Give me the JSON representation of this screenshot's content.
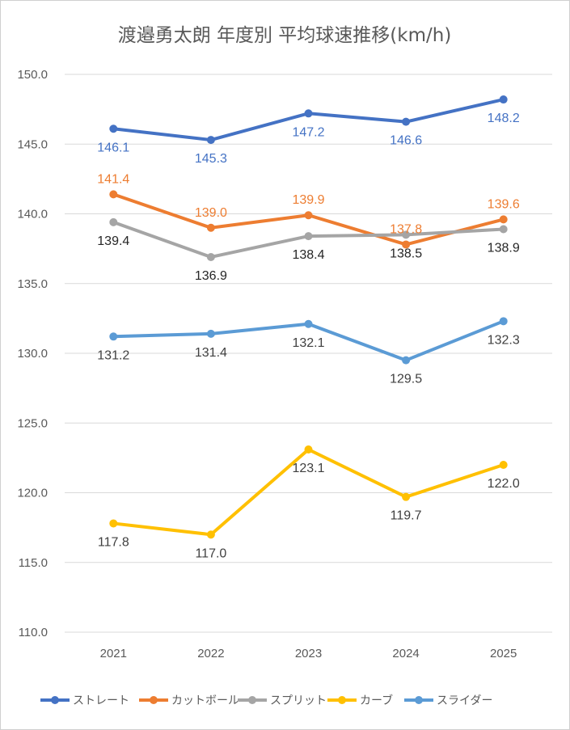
{
  "chart_data": {
    "type": "line",
    "title": "渡邉勇太朗 年度別 平均球速推移(km/h)",
    "categories": [
      "2021",
      "2022",
      "2023",
      "2024",
      "2025"
    ],
    "y_ticks": [
      "150.0",
      "145.0",
      "140.0",
      "135.0",
      "130.0",
      "125.0",
      "120.0",
      "115.0",
      "110.0"
    ],
    "ylim": [
      110,
      150
    ],
    "grid": true,
    "legend_position": "bottom",
    "series": [
      {
        "name": "ストレート",
        "color": "#4472c4",
        "label_color": "#4472c4",
        "values": [
          146.1,
          145.3,
          147.2,
          146.6,
          148.2
        ],
        "labels": [
          "146.1",
          "145.3",
          "147.2",
          "146.6",
          "148.2"
        ],
        "label_pos": [
          "below",
          "below",
          "below",
          "below",
          "below"
        ]
      },
      {
        "name": "カットボール",
        "color": "#ed7d31",
        "label_color": "#ed7d31",
        "values": [
          141.4,
          139.0,
          139.9,
          137.8,
          139.6
        ],
        "labels": [
          "141.4",
          "139.0",
          "139.9",
          "137.8",
          "139.6"
        ],
        "label_pos": [
          "above",
          "above",
          "above",
          "above",
          "above"
        ]
      },
      {
        "name": "スプリット",
        "color": "#a5a5a5",
        "label_color": "#262626",
        "values": [
          139.4,
          136.9,
          138.4,
          138.5,
          138.9
        ],
        "labels": [
          "139.4",
          "136.9",
          "138.4",
          "138.5",
          "138.9"
        ],
        "label_pos": [
          "below",
          "below",
          "below",
          "below",
          "below"
        ]
      },
      {
        "name": "カーブ",
        "color": "#ffc000",
        "label_color": "#404040",
        "values": [
          117.8,
          117.0,
          123.1,
          119.7,
          122.0
        ],
        "labels": [
          "117.8",
          "117.0",
          "123.1",
          "119.7",
          "122.0"
        ],
        "label_pos": [
          "below",
          "below",
          "below",
          "below",
          "below"
        ]
      },
      {
        "name": "スライダー",
        "color": "#5b9bd5",
        "label_color": "#404040",
        "values": [
          131.2,
          131.4,
          132.1,
          129.5,
          132.3
        ],
        "labels": [
          "131.2",
          "131.4",
          "132.1",
          "129.5",
          "132.3"
        ],
        "label_pos": [
          "below",
          "below",
          "below",
          "below",
          "below"
        ]
      }
    ]
  }
}
